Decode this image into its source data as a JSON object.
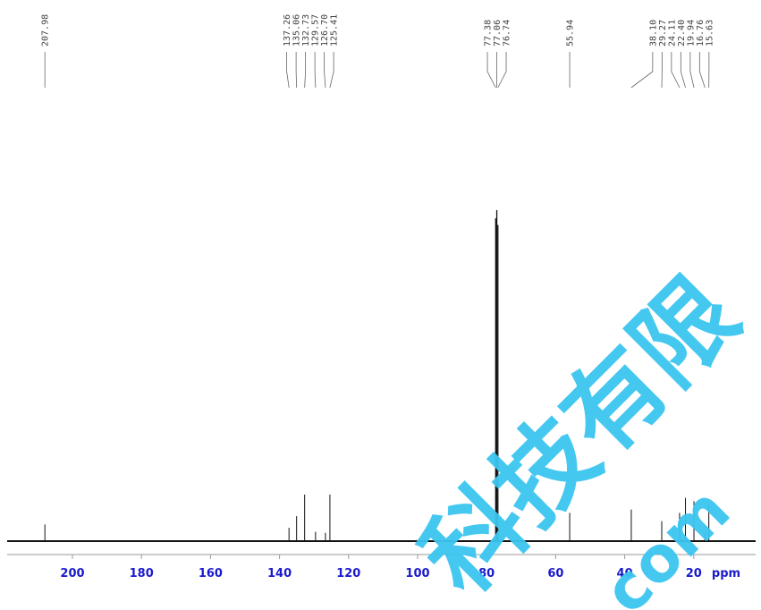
{
  "chart_data": {
    "type": "line",
    "title": "",
    "xlabel": "ppm",
    "ylabel": "",
    "x_reversed": true,
    "xlim": [
      215,
      -2
    ],
    "ylim": [
      0,
      1
    ],
    "grid": false,
    "x_ticks": [
      200,
      180,
      160,
      140,
      120,
      100,
      80,
      60,
      40,
      20
    ],
    "peak_labels": [
      {
        "group": [
          {
            "ppm": 207.98,
            "label": "207.98"
          }
        ]
      },
      {
        "group": [
          {
            "ppm": 137.26,
            "label": "137.26"
          },
          {
            "ppm": 135.06,
            "label": "135.06"
          },
          {
            "ppm": 132.73,
            "label": "132.73"
          },
          {
            "ppm": 129.57,
            "label": "129.57"
          },
          {
            "ppm": 126.7,
            "label": "126.70"
          },
          {
            "ppm": 125.41,
            "label": "125.41"
          }
        ]
      },
      {
        "group": [
          {
            "ppm": 77.38,
            "label": "77.38"
          },
          {
            "ppm": 77.06,
            "label": "77.06"
          },
          {
            "ppm": 76.74,
            "label": "76.74"
          }
        ]
      },
      {
        "group": [
          {
            "ppm": 55.94,
            "label": "55.94"
          }
        ]
      },
      {
        "group": [
          {
            "ppm": 38.1,
            "label": "38.10"
          },
          {
            "ppm": 29.27,
            "label": "29.27"
          },
          {
            "ppm": 24.11,
            "label": "24.11"
          },
          {
            "ppm": 22.4,
            "label": "22.40"
          },
          {
            "ppm": 19.94,
            "label": "19.94"
          },
          {
            "ppm": 16.76,
            "label": "16.76"
          },
          {
            "ppm": 15.63,
            "label": "15.63"
          }
        ]
      }
    ],
    "peaks": [
      {
        "ppm": 207.98,
        "intensity": 0.05
      },
      {
        "ppm": 137.26,
        "intensity": 0.04
      },
      {
        "ppm": 135.06,
        "intensity": 0.075
      },
      {
        "ppm": 132.73,
        "intensity": 0.14
      },
      {
        "ppm": 129.57,
        "intensity": 0.028
      },
      {
        "ppm": 126.7,
        "intensity": 0.025
      },
      {
        "ppm": 125.41,
        "intensity": 0.14
      },
      {
        "ppm": 77.38,
        "intensity": 0.97
      },
      {
        "ppm": 77.06,
        "intensity": 0.995
      },
      {
        "ppm": 76.74,
        "intensity": 0.95
      },
      {
        "ppm": 55.94,
        "intensity": 0.085
      },
      {
        "ppm": 38.1,
        "intensity": 0.095
      },
      {
        "ppm": 29.27,
        "intensity": 0.06
      },
      {
        "ppm": 24.11,
        "intensity": 0.085
      },
      {
        "ppm": 22.4,
        "intensity": 0.13
      },
      {
        "ppm": 19.94,
        "intensity": 0.12
      },
      {
        "ppm": 16.76,
        "intensity": 0.025
      },
      {
        "ppm": 15.63,
        "intensity": 0.11
      }
    ],
    "colors": {
      "trace": "#111111",
      "axis": "#999999",
      "ticks": "#1a1acc",
      "labels": "#444444",
      "watermark": "#3cc6f0"
    }
  },
  "watermark": {
    "line1": "科技有限",
    "line2": "com"
  }
}
